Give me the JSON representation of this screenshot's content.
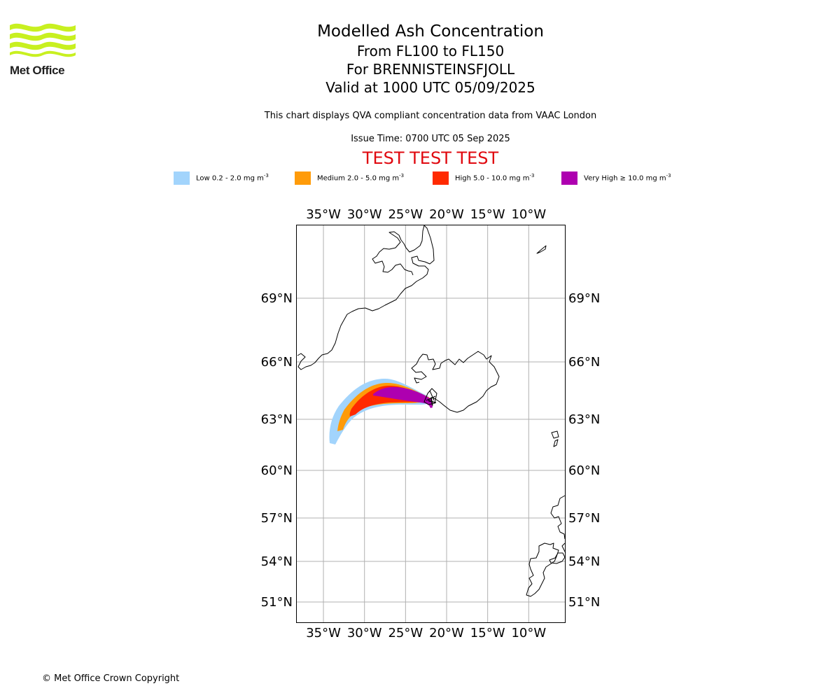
{
  "logo": {
    "text": "Met Office"
  },
  "header": {
    "title": "Modelled Ash Concentration",
    "level_range": "From FL100 to FL150",
    "volcano": "For BRENNISTEINSFJOLL",
    "valid_time": "Valid at 1000 UTC 05/09/2025",
    "description": "This chart displays QVA compliant concentration data from VAAC London",
    "issue_time": "Issue Time: 0700 UTC 05 Sep 2025",
    "test_banner": "TEST TEST TEST"
  },
  "legend": [
    {
      "label": "Low 0.2 - 2.0 mg m",
      "unit_exp": "-3",
      "color": "#a2d4fc"
    },
    {
      "label": "Medium 2.0 - 5.0 mg m",
      "unit_exp": "-3",
      "color": "#ff9b09"
    },
    {
      "label": "High 5.0 - 10.0 mg m",
      "unit_exp": "-3",
      "color": "#ff2a00"
    },
    {
      "label": "Very High  ≥  10.0 mg m",
      "unit_exp": "-3",
      "color": "#ae00b0"
    }
  ],
  "map_data": {
    "projection": "polar stereographic",
    "lon_range": [
      -38,
      -6
    ],
    "lat_range": [
      49.5,
      72.5
    ],
    "gridlines": true,
    "lon_ticks": [
      "35°W",
      "30°W",
      "25°W",
      "20°W",
      "15°W",
      "10°W"
    ],
    "lat_ticks": [
      "69°N",
      "66°N",
      "63°N",
      "60°N",
      "57°N",
      "54°N",
      "51°N"
    ],
    "lon_values": [
      -35,
      -30,
      -25,
      -20,
      -15,
      -10
    ],
    "lat_values": [
      69,
      66,
      63,
      60,
      57,
      54,
      51
    ],
    "source_location": {
      "lat": 63.9,
      "lon": -21.8
    },
    "plume_levels": [
      "low",
      "medium",
      "high",
      "very_high"
    ]
  },
  "footer": {
    "copyright": "© Met Office Crown Copyright"
  }
}
